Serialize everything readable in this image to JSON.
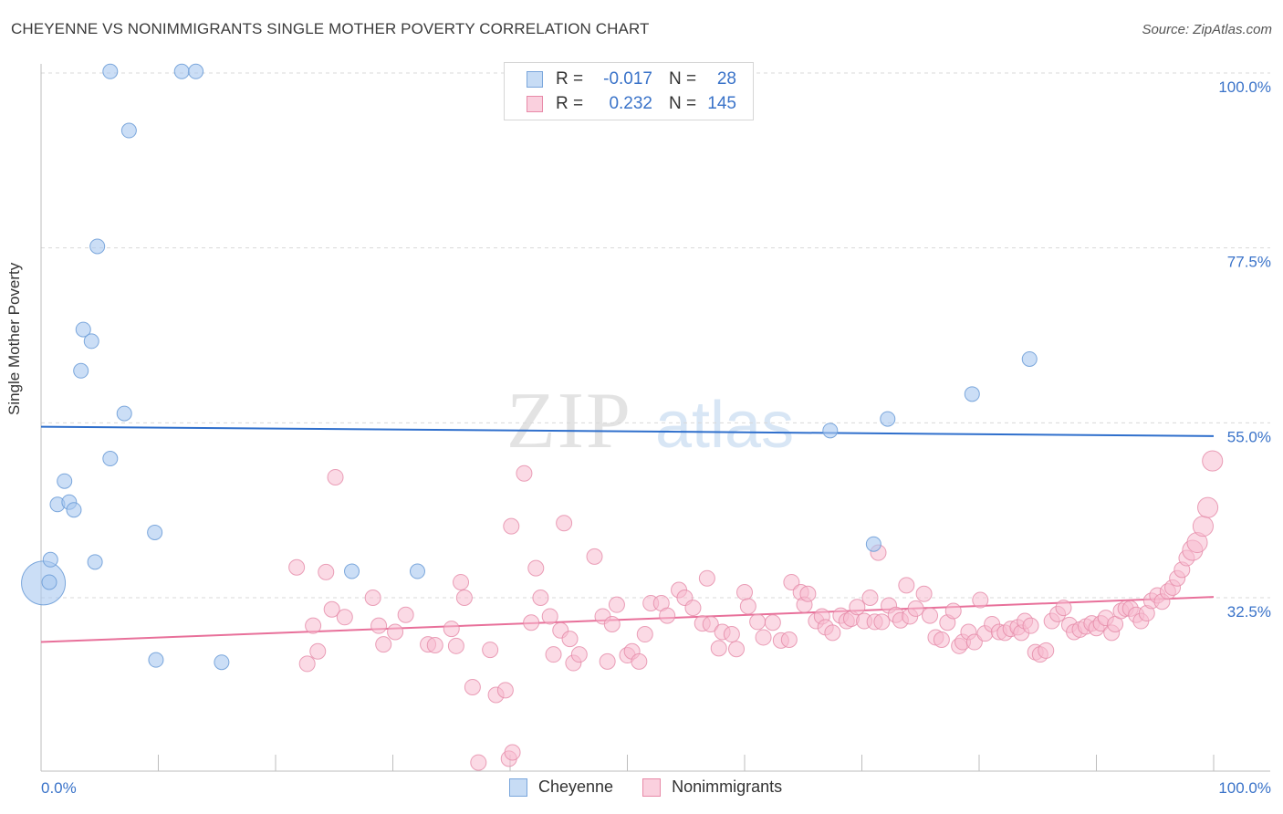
{
  "header": {
    "title": "CHEYENNE VS NONIMMIGRANTS SINGLE MOTHER POVERTY CORRELATION CHART",
    "source": "Source: ZipAtlas.com"
  },
  "watermark": {
    "zip": "ZIP",
    "atlas": "atlas"
  },
  "legend": {
    "rows": [
      {
        "r_label": "R =",
        "r_value": "-0.017",
        "n_label": "N =",
        "n_value": "28",
        "color": "#a9c8f0",
        "border": "#7aa6dc"
      },
      {
        "r_label": "R =",
        "r_value": "0.232",
        "n_label": "N =",
        "n_value": "145",
        "color": "#f7bcd0",
        "border": "#e88aa8"
      }
    ]
  },
  "bottom_legend": {
    "series1": "Cheyenne",
    "series2": "Nonimmigrants"
  },
  "colors": {
    "blue_fill": "#a9c8f0",
    "blue_stroke": "#6f9fd8",
    "blue_line": "#2f6fcc",
    "pink_fill": "#f7bcd0",
    "pink_stroke": "#e58aa8",
    "pink_line": "#e8709a",
    "tick_label": "#3a73c9",
    "grid": "#d9d9d9"
  },
  "chart_data": {
    "type": "scatter",
    "title": "CHEYENNE VS NONIMMIGRANTS SINGLE MOTHER POVERTY CORRELATION CHART",
    "xlabel": "",
    "ylabel": "Single Mother Poverty",
    "xlim": [
      0,
      100
    ],
    "ylim": [
      10,
      102
    ],
    "x_tick_labels": [
      "0.0%",
      "100.0%"
    ],
    "y_ticks": [
      32.5,
      55.0,
      77.5,
      100.0
    ],
    "y_tick_labels": [
      "32.5%",
      "55.0%",
      "77.5%",
      "100.0%"
    ],
    "grid": true,
    "legend_position": "top-center",
    "series": [
      {
        "name": "Cheyenne",
        "r": -0.017,
        "n": 28,
        "trend": [
          [
            0,
            54.5
          ],
          [
            100,
            53.3
          ]
        ],
        "points": [
          [
            0.2,
            34.4,
            3
          ],
          [
            0.7,
            34.5,
            1
          ],
          [
            0.8,
            37.4,
            1
          ],
          [
            1.4,
            44.5,
            1
          ],
          [
            2.0,
            47.5,
            1
          ],
          [
            2.4,
            44.8,
            1
          ],
          [
            2.8,
            43.8,
            1
          ],
          [
            3.4,
            61.7,
            1
          ],
          [
            3.6,
            67.0,
            1
          ],
          [
            4.3,
            65.5,
            1
          ],
          [
            4.6,
            37.1,
            1
          ],
          [
            4.8,
            77.7,
            1
          ],
          [
            5.9,
            50.4,
            1
          ],
          [
            5.9,
            100.2,
            1
          ],
          [
            7.1,
            56.2,
            1
          ],
          [
            7.5,
            92.6,
            1
          ],
          [
            9.7,
            40.9,
            1
          ],
          [
            9.8,
            24.5,
            1
          ],
          [
            12.0,
            100.2,
            1
          ],
          [
            13.2,
            100.2,
            1
          ],
          [
            15.4,
            24.2,
            1
          ],
          [
            26.5,
            35.9,
            1
          ],
          [
            32.1,
            35.9,
            1
          ],
          [
            67.3,
            54.0,
            1
          ],
          [
            71.0,
            39.4,
            1
          ],
          [
            72.2,
            55.5,
            1
          ],
          [
            79.4,
            58.7,
            1
          ],
          [
            84.3,
            63.2,
            1
          ]
        ]
      },
      {
        "name": "Nonimmigrants",
        "r": 0.232,
        "n": 145,
        "trend": [
          [
            0,
            26.8
          ],
          [
            100,
            32.6
          ]
        ],
        "points": [
          [
            21.8,
            36.4,
            1
          ],
          [
            22.7,
            24.0,
            1
          ],
          [
            23.2,
            28.9,
            1
          ],
          [
            23.6,
            25.6,
            1
          ],
          [
            24.3,
            35.8,
            1
          ],
          [
            24.8,
            31.0,
            1
          ],
          [
            25.1,
            48.0,
            1
          ],
          [
            25.9,
            30.0,
            1
          ],
          [
            28.3,
            32.5,
            1
          ],
          [
            28.8,
            28.9,
            1
          ],
          [
            29.2,
            26.5,
            1
          ],
          [
            30.2,
            28.1,
            1
          ],
          [
            31.1,
            30.3,
            1
          ],
          [
            33.0,
            26.5,
            1
          ],
          [
            33.6,
            26.4,
            1
          ],
          [
            35.0,
            28.5,
            1
          ],
          [
            35.4,
            26.3,
            1
          ],
          [
            35.8,
            34.5,
            1
          ],
          [
            36.1,
            32.5,
            1
          ],
          [
            36.8,
            21.0,
            1
          ],
          [
            37.3,
            11.3,
            1
          ],
          [
            38.3,
            25.8,
            1
          ],
          [
            38.8,
            20.0,
            1
          ],
          [
            39.6,
            20.6,
            1
          ],
          [
            39.9,
            11.8,
            1
          ],
          [
            40.1,
            41.7,
            1
          ],
          [
            40.2,
            12.6,
            1
          ],
          [
            41.2,
            48.5,
            1
          ],
          [
            41.8,
            29.3,
            1
          ],
          [
            42.2,
            36.3,
            1
          ],
          [
            42.6,
            32.5,
            1
          ],
          [
            43.4,
            30.1,
            1
          ],
          [
            43.7,
            25.2,
            1
          ],
          [
            44.3,
            28.3,
            1
          ],
          [
            44.6,
            42.1,
            1
          ],
          [
            45.1,
            27.2,
            1
          ],
          [
            45.4,
            24.1,
            1
          ],
          [
            45.9,
            25.2,
            1
          ],
          [
            47.2,
            37.8,
            1
          ],
          [
            47.9,
            30.1,
            1
          ],
          [
            48.3,
            24.3,
            1
          ],
          [
            48.7,
            29.1,
            1
          ],
          [
            49.1,
            31.6,
            1
          ],
          [
            50.0,
            25.1,
            1
          ],
          [
            50.4,
            25.6,
            1
          ],
          [
            51.0,
            24.3,
            1
          ],
          [
            51.5,
            27.8,
            1
          ],
          [
            52.0,
            31.8,
            1
          ],
          [
            52.9,
            31.8,
            1
          ],
          [
            53.4,
            30.2,
            1
          ],
          [
            54.4,
            33.5,
            1
          ],
          [
            54.9,
            32.5,
            1
          ],
          [
            55.6,
            31.2,
            1
          ],
          [
            56.4,
            29.2,
            1
          ],
          [
            56.8,
            35.0,
            1
          ],
          [
            57.1,
            29.1,
            1
          ],
          [
            57.8,
            26.0,
            1
          ],
          [
            58.1,
            28.1,
            1
          ],
          [
            58.9,
            27.8,
            1
          ],
          [
            59.3,
            25.9,
            1
          ],
          [
            60.0,
            33.2,
            1
          ],
          [
            60.3,
            31.4,
            1
          ],
          [
            61.1,
            29.4,
            1
          ],
          [
            61.6,
            27.4,
            1
          ],
          [
            62.4,
            29.3,
            1
          ],
          [
            63.1,
            27.0,
            1
          ],
          [
            63.8,
            27.1,
            1
          ],
          [
            64.0,
            34.5,
            1
          ],
          [
            64.8,
            33.2,
            1
          ],
          [
            65.1,
            31.6,
            1
          ],
          [
            65.4,
            33.0,
            1
          ],
          [
            66.1,
            29.5,
            1
          ],
          [
            66.6,
            30.1,
            1
          ],
          [
            66.9,
            28.7,
            1
          ],
          [
            67.5,
            28.0,
            1
          ],
          [
            68.2,
            30.2,
            1
          ],
          [
            68.7,
            29.5,
            1
          ],
          [
            69.1,
            29.8,
            1
          ],
          [
            69.6,
            31.3,
            1
          ],
          [
            70.2,
            29.5,
            1
          ],
          [
            70.7,
            32.5,
            1
          ],
          [
            71.1,
            29.4,
            1
          ],
          [
            71.4,
            38.3,
            1
          ],
          [
            71.7,
            29.4,
            1
          ],
          [
            72.3,
            31.5,
            1
          ],
          [
            72.9,
            30.3,
            1
          ],
          [
            73.3,
            29.6,
            1
          ],
          [
            73.8,
            34.1,
            1
          ],
          [
            74.1,
            30.1,
            1
          ],
          [
            74.6,
            31.1,
            1
          ],
          [
            75.3,
            33.0,
            1
          ],
          [
            75.8,
            30.2,
            1
          ],
          [
            76.3,
            27.4,
            1
          ],
          [
            76.8,
            27.1,
            1
          ],
          [
            77.3,
            29.3,
            1
          ],
          [
            77.8,
            30.8,
            1
          ],
          [
            78.3,
            26.3,
            1
          ],
          [
            78.6,
            26.8,
            1
          ],
          [
            79.1,
            28.1,
            1
          ],
          [
            79.6,
            26.8,
            1
          ],
          [
            80.1,
            32.2,
            1
          ],
          [
            80.5,
            27.9,
            1
          ],
          [
            81.1,
            29.1,
            1
          ],
          [
            81.7,
            28.1,
            1
          ],
          [
            82.2,
            28.0,
            1
          ],
          [
            82.7,
            28.5,
            1
          ],
          [
            83.3,
            28.7,
            1
          ],
          [
            83.6,
            28.0,
            1
          ],
          [
            83.9,
            29.5,
            1
          ],
          [
            84.4,
            28.9,
            1
          ],
          [
            84.8,
            25.5,
            1
          ],
          [
            85.2,
            25.2,
            1
          ],
          [
            85.7,
            25.7,
            1
          ],
          [
            86.2,
            29.5,
            1
          ],
          [
            86.7,
            30.4,
            1
          ],
          [
            87.2,
            31.2,
            1
          ],
          [
            87.7,
            29.0,
            1
          ],
          [
            88.1,
            28.1,
            1
          ],
          [
            88.6,
            28.4,
            1
          ],
          [
            89.1,
            28.8,
            1
          ],
          [
            89.6,
            29.2,
            1
          ],
          [
            90.0,
            28.6,
            1
          ],
          [
            90.4,
            29.2,
            1
          ],
          [
            90.8,
            29.9,
            1
          ],
          [
            91.3,
            28.0,
            1
          ],
          [
            91.6,
            29.1,
            1
          ],
          [
            92.1,
            30.8,
            1
          ],
          [
            92.5,
            31.1,
            1
          ],
          [
            92.9,
            31.1,
            1
          ],
          [
            93.4,
            30.3,
            1
          ],
          [
            93.8,
            29.5,
            1
          ],
          [
            94.3,
            30.5,
            1
          ],
          [
            94.7,
            32.1,
            1
          ],
          [
            95.2,
            32.8,
            1
          ],
          [
            95.6,
            32.0,
            1
          ],
          [
            96.1,
            33.3,
            1
          ],
          [
            96.5,
            33.8,
            1
          ],
          [
            96.9,
            35.0,
            1
          ],
          [
            97.3,
            36.1,
            1
          ],
          [
            97.7,
            37.6,
            1
          ],
          [
            98.2,
            38.6,
            1.3
          ],
          [
            98.6,
            39.6,
            1.3
          ],
          [
            99.1,
            41.7,
            1.3
          ],
          [
            99.5,
            44.1,
            1.3
          ],
          [
            99.9,
            50.1,
            1.3
          ]
        ]
      }
    ]
  }
}
